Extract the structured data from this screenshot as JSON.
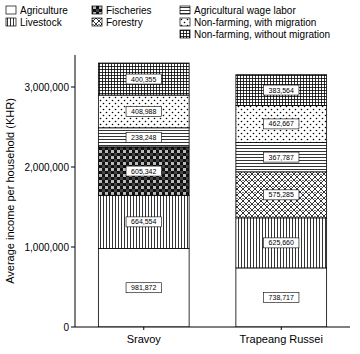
{
  "chart_data": {
    "type": "bar",
    "stacked": true,
    "data_labels": true,
    "y_label": "Average income per household (KHR)",
    "categories": [
      "Sravoy",
      "Trapeang Russei"
    ],
    "ylim": [
      0,
      3400000
    ],
    "yticks": [
      0,
      {
        "value": 1000000,
        "label": "1,000,000"
      },
      {
        "value": 2000000,
        "label": "2,000,000"
      },
      {
        "value": 3000000,
        "label": "3,000,000"
      }
    ],
    "series": [
      {
        "name": "Agriculture",
        "color": "#ffffff",
        "values": [
          981872,
          738717
        ],
        "value_labels": [
          "981,872",
          "738,717"
        ]
      },
      {
        "name": "Livestock",
        "color": "#ffffff",
        "values": [
          664554,
          625660
        ],
        "value_labels": [
          "664,554",
          "625,660"
        ]
      },
      {
        "name": "Fischeries",
        "color": "#444444",
        "values": [
          605342,
          null
        ],
        "value_labels": [
          "605,342",
          null
        ]
      },
      {
        "name": "Forestry",
        "color": "#ffffff",
        "values": [
          null,
          575285
        ],
        "value_labels": [
          null,
          "575,285"
        ]
      },
      {
        "name": "Agricultural wage labor",
        "color": "#ffffff",
        "values": [
          238248,
          367787
        ],
        "value_labels": [
          "238,248",
          "367,787"
        ]
      },
      {
        "name": "Non-farming, with migration",
        "color": "#ffffff",
        "values": [
          408988,
          462667
        ],
        "value_labels": [
          "408,988",
          "462,667"
        ]
      },
      {
        "name": "Non-farming, without migration",
        "color": "#ffffff",
        "values": [
          400355,
          383564
        ],
        "value_labels": [
          "400,355",
          "383,564"
        ]
      }
    ]
  }
}
